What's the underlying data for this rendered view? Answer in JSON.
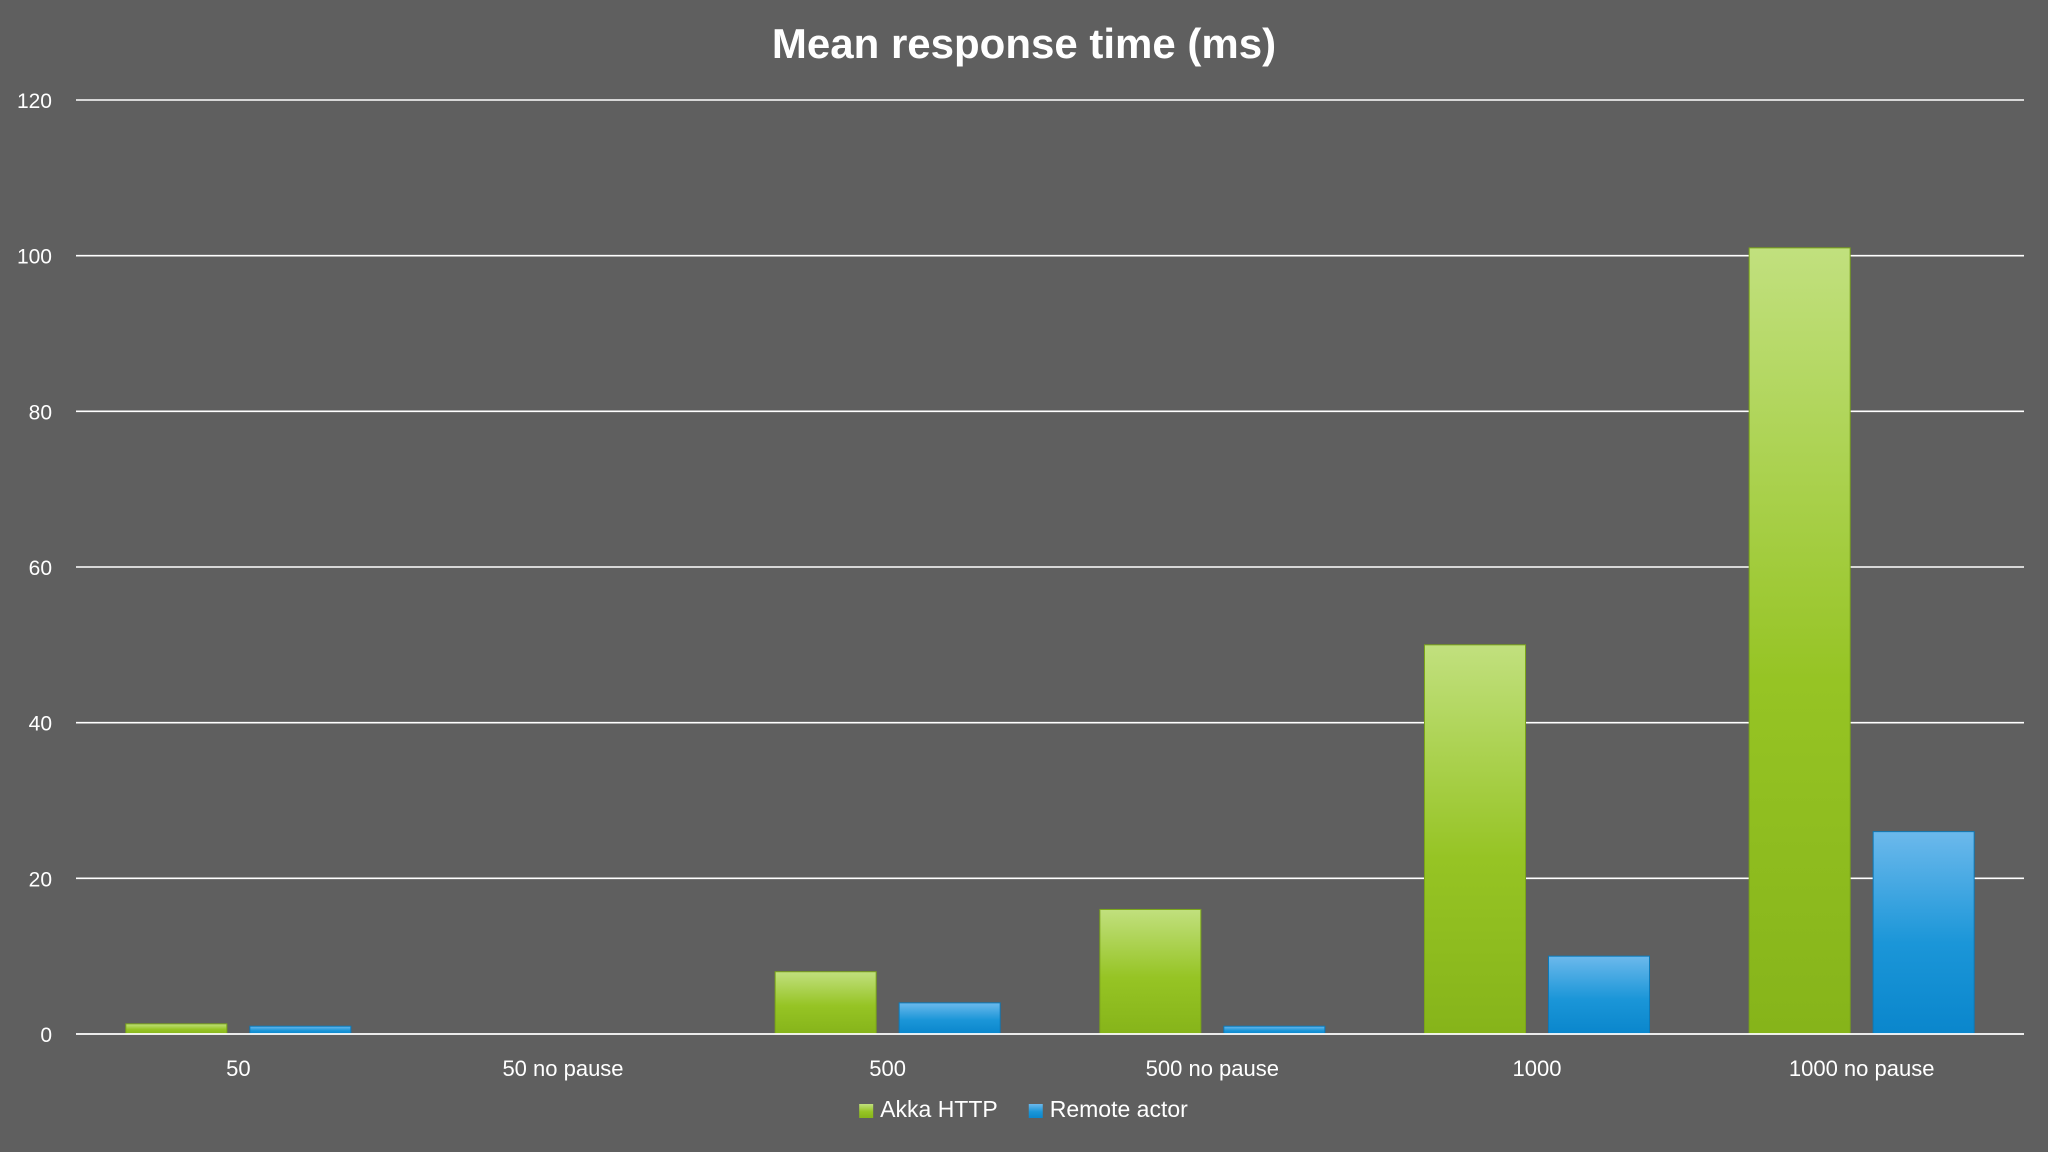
{
  "chart_data": {
    "type": "bar",
    "title": "Mean response time (ms)",
    "xlabel": "",
    "ylabel": "",
    "categories": [
      "50",
      "50 no pause",
      "500",
      "500 no pause",
      "1000",
      "1000 no pause"
    ],
    "series": [
      {
        "name": "Akka HTTP",
        "values": [
          1.3,
          0,
          8,
          16,
          50,
          101
        ],
        "color": "#8dc21f"
      },
      {
        "name": "Remote actor",
        "values": [
          1,
          0,
          4,
          1,
          10,
          26
        ],
        "color": "#1b96d8"
      }
    ],
    "ylim": [
      0,
      120
    ],
    "yticks": [
      0,
      20,
      40,
      60,
      80,
      100,
      120
    ],
    "grid": true,
    "legend_position": "bottom-center"
  }
}
